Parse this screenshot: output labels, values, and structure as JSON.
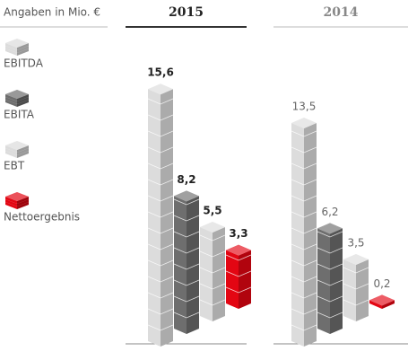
{
  "chart_data": {
    "type": "bar",
    "subtitle": "Angaben in Mio. €",
    "categories": [
      "2015",
      "2014"
    ],
    "series": [
      {
        "name": "EBITDA",
        "color": "#dcdcdc",
        "values": [
          15.6,
          13.5
        ],
        "value_labels": [
          "15,6",
          "13,5"
        ]
      },
      {
        "name": "EBITA",
        "color": "#6e6e6e",
        "values": [
          8.2,
          6.2
        ],
        "value_labels": [
          "8,2",
          "6,2"
        ]
      },
      {
        "name": "EBT",
        "color": "#dcdcdc",
        "values": [
          5.5,
          3.5
        ],
        "value_labels": [
          "5,5",
          "3,5"
        ]
      },
      {
        "name": "Nettoergebnis",
        "color": "#e30613",
        "values": [
          3.3,
          0.2
        ],
        "value_labels": [
          "3,3",
          "0,2"
        ]
      }
    ]
  }
}
